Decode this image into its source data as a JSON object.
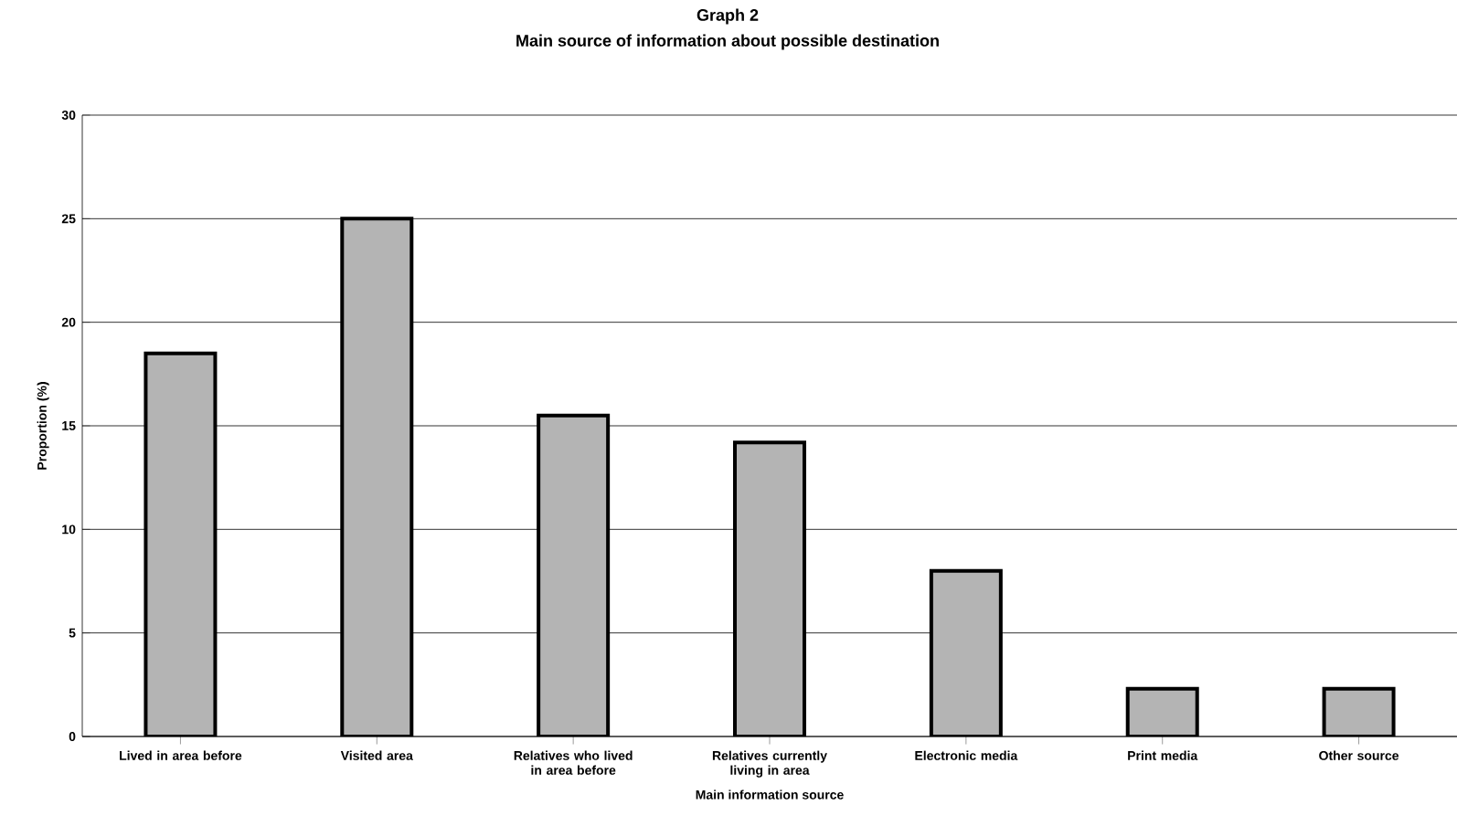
{
  "chart_data": {
    "type": "bar",
    "title": "Graph 2",
    "subtitle": "Main source of information about possible destination",
    "xlabel": "Main information source",
    "ylabel": "Proportion (%)",
    "categories": [
      "Lived in area before",
      "Visited area",
      "Relatives who lived in area before",
      "Relatives currently living in area",
      "Electronic media",
      "Print media",
      "Other source"
    ],
    "values": [
      18.5,
      25,
      15.5,
      14.2,
      8,
      2.3,
      2.3
    ],
    "color": "#b4b4b4",
    "ylim": [
      0,
      30
    ],
    "yticks": [
      0,
      5,
      10,
      15,
      20,
      25,
      30
    ],
    "grid": "y"
  }
}
